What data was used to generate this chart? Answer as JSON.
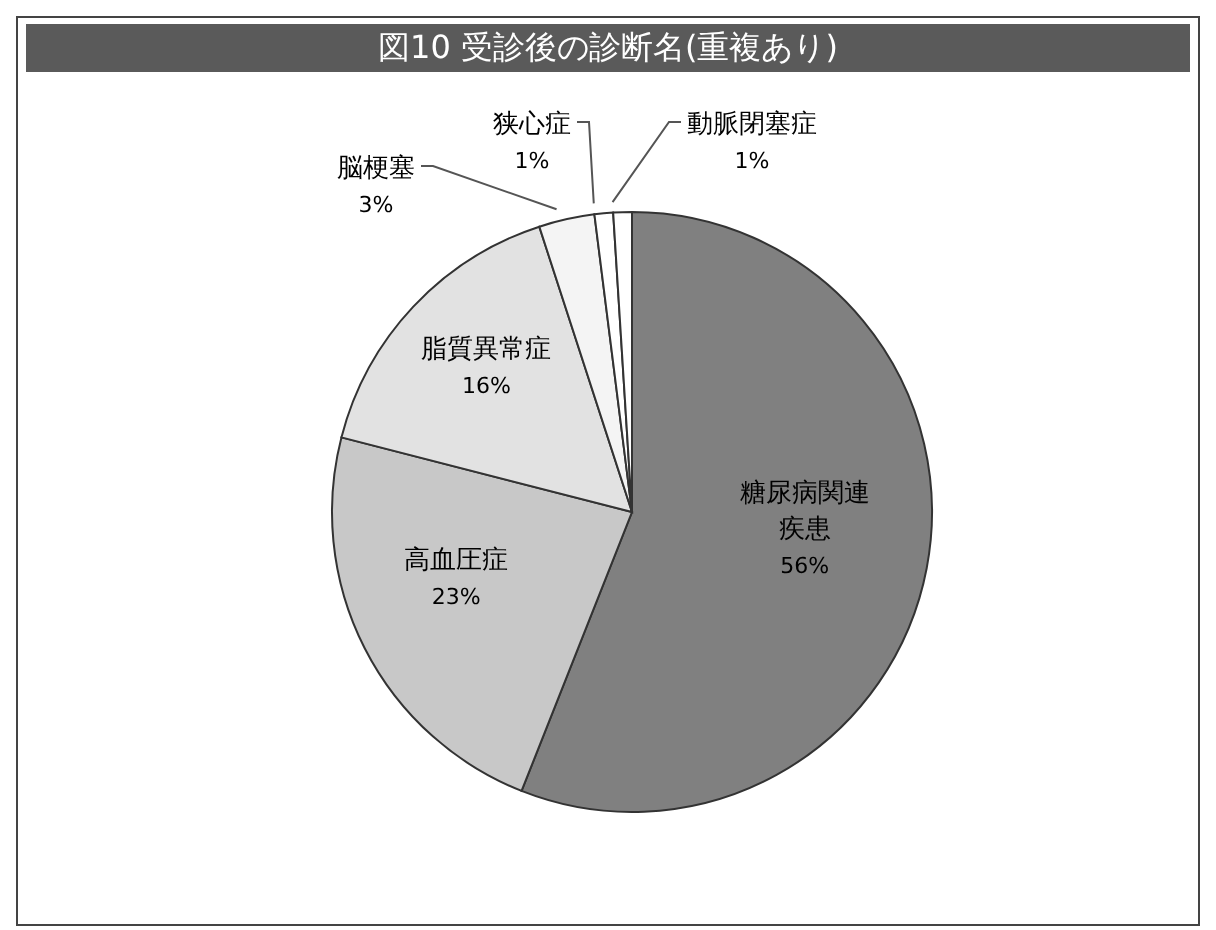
{
  "chart_data": {
    "type": "pie",
    "title": "図10 受診後の診断名(重複あり)",
    "categories": [
      "糖尿病関連疾患",
      "高血圧症",
      "脂質異常症",
      "脳梗塞",
      "狭心症",
      "動脈閉塞症"
    ],
    "values": [
      56,
      23,
      16,
      3,
      1,
      1
    ],
    "value_labels": [
      "56%",
      "23%",
      "16%",
      "3%",
      "1%",
      "1%"
    ],
    "colors": [
      "#808080",
      "#c8c8c8",
      "#e2e2e2",
      "#f4f4f4",
      "#ffffff",
      "#ffffff"
    ],
    "legend": false
  }
}
